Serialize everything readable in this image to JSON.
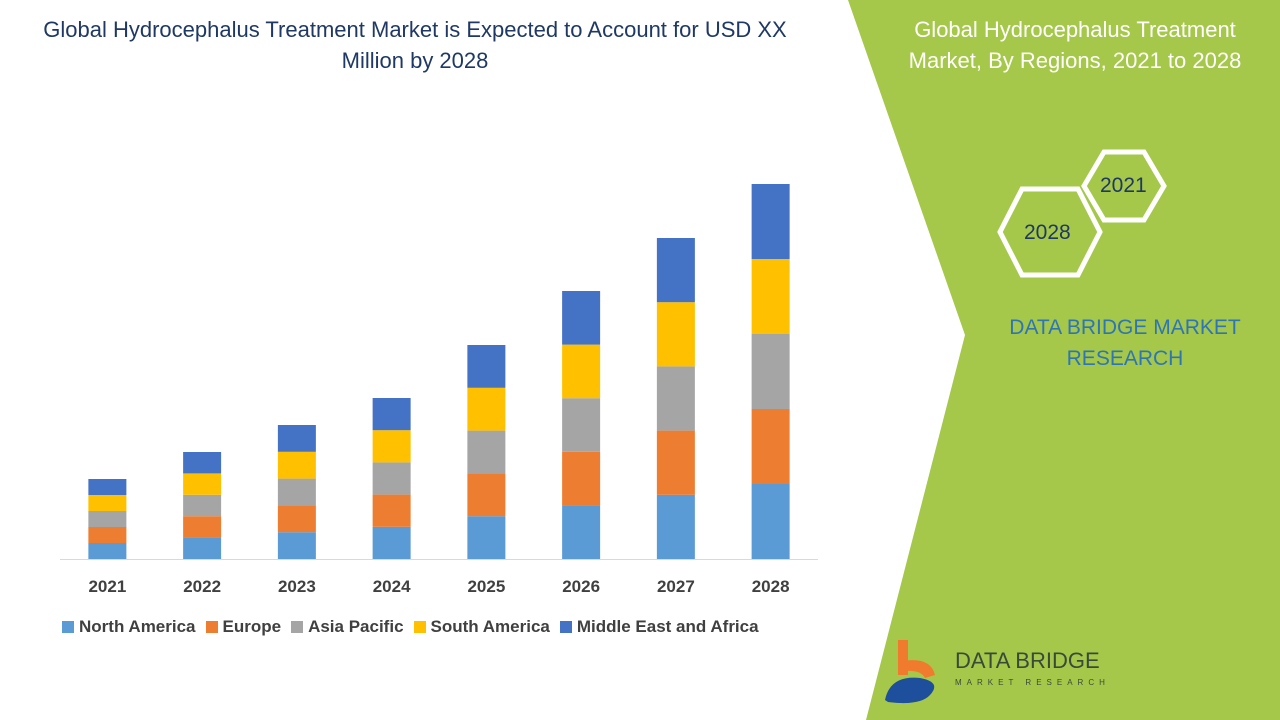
{
  "title": "Global Hydrocephalus Treatment Market is Expected to Account for USD XX Million by 2028",
  "side_panel": {
    "title": "Global Hydrocephalus Treatment Market, By Regions, 2021 to 2028",
    "hex_labels": [
      "2021",
      "2028"
    ],
    "brand_text": "DATA BRIDGE MARKET RESEARCH",
    "logo_text": "DATA BRIDGE",
    "logo_subtext": "MARKET RESEARCH",
    "accent_color": "#a5c84a"
  },
  "chart_data": {
    "type": "bar",
    "stacked": true,
    "categories": [
      "2021",
      "2022",
      "2023",
      "2024",
      "2025",
      "2026",
      "2027",
      "2028"
    ],
    "series": [
      {
        "name": "North America",
        "color": "#5b9bd5",
        "values": [
          16,
          21.4,
          26.8,
          32.2,
          42.8,
          53.6,
          64.2,
          75
        ]
      },
      {
        "name": "Europe",
        "color": "#ed7d31",
        "values": [
          16,
          21.4,
          26.8,
          32.2,
          42.8,
          53.6,
          64.2,
          75
        ]
      },
      {
        "name": "Asia Pacific",
        "color": "#a5a5a5",
        "values": [
          16,
          21.4,
          26.8,
          32.2,
          42.8,
          53.6,
          64.2,
          75
        ]
      },
      {
        "name": "South America",
        "color": "#ffc000",
        "values": [
          16,
          21.4,
          26.8,
          32.2,
          42.8,
          53.6,
          64.2,
          75
        ]
      },
      {
        "name": "Middle East and Africa",
        "color": "#4472c4",
        "values": [
          16,
          21.4,
          26.8,
          32.2,
          42.8,
          53.6,
          64.2,
          75
        ]
      }
    ],
    "ylim": [
      0,
      380
    ],
    "y_axis_visible": false,
    "grid": false,
    "legend": "bottom"
  }
}
